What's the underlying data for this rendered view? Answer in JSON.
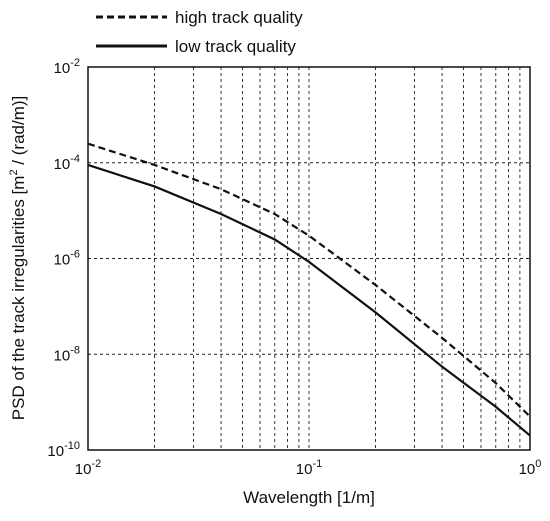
{
  "chart_data": {
    "type": "line",
    "title": "",
    "xlabel": "Wavelength [1/m]",
    "ylabel": "PSD of the track irregularities [m² / (rad/m)]",
    "ylabel_parts": {
      "before": "PSD of the track irregularities [m",
      "sup": "2",
      "after": " / (rad/m)]"
    },
    "xscale": "log",
    "yscale": "log",
    "xlim": [
      0.01,
      1
    ],
    "ylim": [
      1e-10,
      0.01
    ],
    "grid": true,
    "grid_style": "dashed",
    "legend_position": "top-left, above plot",
    "x_ticks": [
      {
        "value": 0.01,
        "base": "10",
        "exp": "-2"
      },
      {
        "value": 0.1,
        "base": "10",
        "exp": "-1"
      },
      {
        "value": 1,
        "base": "10",
        "exp": "0"
      }
    ],
    "y_ticks": [
      {
        "value": 0.01,
        "base": "10",
        "exp": "-2"
      },
      {
        "value": 0.0001,
        "base": "10",
        "exp": "-4"
      },
      {
        "value": 1e-06,
        "base": "10",
        "exp": "-6"
      },
      {
        "value": 1e-08,
        "base": "10",
        "exp": "-8"
      },
      {
        "value": 1e-10,
        "base": "10",
        "exp": "-10"
      }
    ],
    "series": [
      {
        "name": "high track quality",
        "line_style": "dashed",
        "color": "#111111",
        "points": [
          [
            0.01,
            0.00025
          ],
          [
            0.02,
            9e-05
          ],
          [
            0.04,
            2.8e-05
          ],
          [
            0.07,
            8.5e-06
          ],
          [
            0.1,
            3e-06
          ],
          [
            0.2,
            2.8e-07
          ],
          [
            0.4,
            2.2e-08
          ],
          [
            0.7,
            2.5e-09
          ],
          [
            1,
            5e-10
          ]
        ]
      },
      {
        "name": "low track quality",
        "line_style": "solid",
        "color": "#111111",
        "points": [
          [
            0.01,
            9e-05
          ],
          [
            0.02,
            3.2e-05
          ],
          [
            0.04,
            8.5e-06
          ],
          [
            0.07,
            2.5e-06
          ],
          [
            0.1,
            8.5e-07
          ],
          [
            0.2,
            7.5e-08
          ],
          [
            0.4,
            5.5e-09
          ],
          [
            0.7,
            8e-10
          ],
          [
            1,
            2e-10
          ]
        ]
      }
    ]
  }
}
